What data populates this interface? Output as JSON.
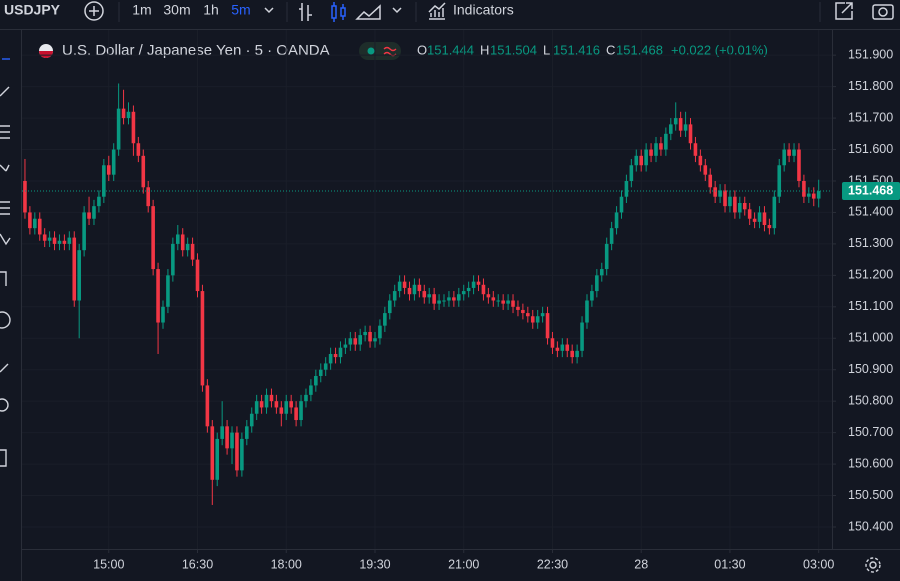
{
  "toolbar": {
    "symbol": "USDJPY",
    "intervals": [
      "1m",
      "30m",
      "1h",
      "5m"
    ],
    "active_interval": 3,
    "indicators": "Indicators"
  },
  "chart_data": {
    "type": "candlestick",
    "title": "U.S. Dollar / Japanese Yen · 5 · OANDA",
    "legend": {
      "labels": [
        "O",
        "H",
        "L",
        "C"
      ],
      "values": [
        151.444,
        151.504,
        151.416,
        151.468
      ],
      "change": "+0.022 (+0.01%)"
    },
    "up_color": "#089981",
    "down_color": "#f23645",
    "grid": true,
    "last_price": 151.468,
    "xlim": [
      -0.6,
      163.7
    ],
    "xticks": [
      {
        "value": 17,
        "label": "15:00"
      },
      {
        "value": 35,
        "label": "16:30"
      },
      {
        "value": 53,
        "label": "18:00"
      },
      {
        "value": 71,
        "label": "19:30"
      },
      {
        "value": 89,
        "label": "21:00"
      },
      {
        "value": 107,
        "label": "22:30"
      },
      {
        "value": 125,
        "label": "28"
      },
      {
        "value": 143,
        "label": "01:30"
      },
      {
        "value": 161,
        "label": "03:00"
      }
    ],
    "ylim": [
      150.33,
      151.98
    ],
    "yticks": [
      {
        "value": 151.9,
        "label": "151.900"
      },
      {
        "value": 151.8,
        "label": "151.800"
      },
      {
        "value": 151.7,
        "label": "151.700"
      },
      {
        "value": 151.6,
        "label": "151.600"
      },
      {
        "value": 151.5,
        "label": "151.500"
      },
      {
        "value": 151.4,
        "label": "151.400"
      },
      {
        "value": 151.3,
        "label": "151.300"
      },
      {
        "value": 151.2,
        "label": "151.200"
      },
      {
        "value": 151.1,
        "label": "151.100"
      },
      {
        "value": 151.0,
        "label": "151.000"
      },
      {
        "value": 150.9,
        "label": "150.900"
      },
      {
        "value": 150.8,
        "label": "150.800"
      },
      {
        "value": 150.7,
        "label": "150.700"
      },
      {
        "value": 150.6,
        "label": "150.600"
      },
      {
        "value": 150.5,
        "label": "150.500"
      },
      {
        "value": 150.4,
        "label": "150.400"
      }
    ],
    "open": [
      151.5,
      151.4,
      151.35,
      151.38,
      151.33,
      151.31,
      151.32,
      151.3,
      151.31,
      151.3,
      151.32,
      151.12,
      151.28,
      151.4,
      151.38,
      151.42,
      151.45,
      151.55,
      151.52,
      151.6,
      151.73,
      151.7,
      151.72,
      151.62,
      151.58,
      151.48,
      151.42,
      151.22,
      151.05,
      151.1,
      151.2,
      151.3,
      151.33,
      151.28,
      151.3,
      151.25,
      151.15,
      150.85,
      150.72,
      150.55,
      150.68,
      150.72,
      150.65,
      150.7,
      150.58,
      150.68,
      150.72,
      150.76,
      150.8,
      150.78,
      150.82,
      150.8,
      150.78,
      150.76,
      150.8,
      150.78,
      150.74,
      150.8,
      150.82,
      150.85,
      150.88,
      150.9,
      150.92,
      150.95,
      150.94,
      150.97,
      150.98,
      151.0,
      150.98,
      151.01,
      151.02,
      150.99,
      151.0,
      151.04,
      151.08,
      151.12,
      151.15,
      151.18,
      151.16,
      151.14,
      151.17,
      151.15,
      151.13,
      151.14,
      151.11,
      151.12,
      151.12,
      151.13,
      151.12,
      151.14,
      151.15,
      151.16,
      151.18,
      151.17,
      151.14,
      151.13,
      151.12,
      151.12,
      151.11,
      151.12,
      151.1,
      151.09,
      151.08,
      151.07,
      151.05,
      151.07,
      151.08,
      151.0,
      150.97,
      150.96,
      150.98,
      150.96,
      150.94,
      150.96,
      151.05,
      151.12,
      151.15,
      151.2,
      151.22,
      151.3,
      151.35,
      151.4,
      151.45,
      151.5,
      151.55,
      151.58,
      151.55,
      151.6,
      151.58,
      151.62,
      151.6,
      151.65,
      151.68,
      151.7,
      151.66,
      151.68,
      151.62,
      151.58,
      151.55,
      151.52,
      151.48,
      151.45,
      151.47,
      151.42,
      151.45,
      151.4,
      151.43,
      151.41,
      151.38,
      151.37,
      151.4,
      151.36,
      151.35,
      151.45,
      151.55,
      151.6,
      151.58,
      151.6,
      151.5,
      151.45,
      151.46,
      151.444
    ],
    "high": [
      151.57,
      151.42,
      151.4,
      151.4,
      151.35,
      151.34,
      151.34,
      151.33,
      151.33,
      151.34,
      151.34,
      151.3,
      151.42,
      151.45,
      151.44,
      151.47,
      151.57,
      151.58,
      151.62,
      151.81,
      151.79,
      151.75,
      151.74,
      151.64,
      151.6,
      151.5,
      151.44,
      151.24,
      151.12,
      151.22,
      151.32,
      151.36,
      151.35,
      151.32,
      151.32,
      151.27,
      151.17,
      150.87,
      150.74,
      150.7,
      150.8,
      150.74,
      150.72,
      150.72,
      150.7,
      150.74,
      150.78,
      150.82,
      150.82,
      150.84,
      150.84,
      150.82,
      150.8,
      150.82,
      150.82,
      150.8,
      150.82,
      150.84,
      150.87,
      150.9,
      150.92,
      150.94,
      150.97,
      150.97,
      150.99,
      151.0,
      151.02,
      151.02,
      151.03,
      151.04,
      151.04,
      151.02,
      151.06,
      151.1,
      151.14,
      151.17,
      151.2,
      151.2,
      151.18,
      151.19,
      151.19,
      151.17,
      151.16,
      151.16,
      151.14,
      151.14,
      151.15,
      151.15,
      151.16,
      151.17,
      151.18,
      151.2,
      151.2,
      151.19,
      151.16,
      151.15,
      151.14,
      151.14,
      151.14,
      151.14,
      151.12,
      151.11,
      151.1,
      151.09,
      151.09,
      151.1,
      151.1,
      151.02,
      150.99,
      151.0,
      151.0,
      150.98,
      150.98,
      151.07,
      151.14,
      151.17,
      151.22,
      151.24,
      151.32,
      151.37,
      151.42,
      151.47,
      151.52,
      151.57,
      151.6,
      151.6,
      151.62,
      151.62,
      151.64,
      151.64,
      151.67,
      151.7,
      151.75,
      151.72,
      151.72,
      151.7,
      151.64,
      151.6,
      151.57,
      151.54,
      151.5,
      151.49,
      151.49,
      151.47,
      151.47,
      151.45,
      151.45,
      151.43,
      151.4,
      151.42,
      151.42,
      151.38,
      151.47,
      151.57,
      151.62,
      151.62,
      151.62,
      151.62,
      151.52,
      151.48,
      151.48,
      151.504
    ],
    "low": [
      151.38,
      151.33,
      151.33,
      151.31,
      151.29,
      151.29,
      151.28,
      151.28,
      151.28,
      151.28,
      151.1,
      151.0,
      151.26,
      151.36,
      151.36,
      151.4,
      151.43,
      151.5,
      151.5,
      151.58,
      151.68,
      151.68,
      151.58,
      151.56,
      151.46,
      151.4,
      151.2,
      150.95,
      151.03,
      151.08,
      151.18,
      151.28,
      151.26,
      151.26,
      151.23,
      151.13,
      150.83,
      150.7,
      150.47,
      150.53,
      150.66,
      150.63,
      150.6,
      150.56,
      150.56,
      150.66,
      150.7,
      150.74,
      150.76,
      150.76,
      150.78,
      150.76,
      150.72,
      150.74,
      150.76,
      150.72,
      150.72,
      150.78,
      150.8,
      150.83,
      150.86,
      150.88,
      150.9,
      150.92,
      150.92,
      150.95,
      150.96,
      150.96,
      150.96,
      150.99,
      150.97,
      150.97,
      150.98,
      151.02,
      151.06,
      151.1,
      151.13,
      151.14,
      151.12,
      151.12,
      151.13,
      151.11,
      151.11,
      151.09,
      151.09,
      151.1,
      151.1,
      151.1,
      151.1,
      151.12,
      151.13,
      151.14,
      151.15,
      151.12,
      151.11,
      151.1,
      151.1,
      151.09,
      151.09,
      151.08,
      151.07,
      151.06,
      151.05,
      151.03,
      151.03,
      151.05,
      150.98,
      150.95,
      150.94,
      150.94,
      150.94,
      150.92,
      150.92,
      150.94,
      151.03,
      151.1,
      151.13,
      151.18,
      151.2,
      151.28,
      151.33,
      151.38,
      151.43,
      151.48,
      151.53,
      151.53,
      151.53,
      151.56,
      151.56,
      151.58,
      151.58,
      151.63,
      151.66,
      151.64,
      151.64,
      151.6,
      151.56,
      151.53,
      151.5,
      151.46,
      151.43,
      151.43,
      151.4,
      151.4,
      151.38,
      151.38,
      151.39,
      151.36,
      151.35,
      151.35,
      151.34,
      151.33,
      151.33,
      151.43,
      151.53,
      151.56,
      151.56,
      151.48,
      151.43,
      151.43,
      151.42,
      151.416
    ],
    "close": [
      151.4,
      151.35,
      151.38,
      151.33,
      151.31,
      151.32,
      151.3,
      151.31,
      151.3,
      151.32,
      151.12,
      151.28,
      151.4,
      151.38,
      151.42,
      151.45,
      151.55,
      151.52,
      151.6,
      151.73,
      151.7,
      151.72,
      151.62,
      151.58,
      151.48,
      151.42,
      151.22,
      151.05,
      151.1,
      151.2,
      151.3,
      151.33,
      151.28,
      151.3,
      151.25,
      151.15,
      150.85,
      150.72,
      150.55,
      150.68,
      150.72,
      150.65,
      150.7,
      150.58,
      150.68,
      150.72,
      150.76,
      150.8,
      150.78,
      150.82,
      150.8,
      150.78,
      150.76,
      150.8,
      150.78,
      150.74,
      150.8,
      150.82,
      150.85,
      150.88,
      150.9,
      150.92,
      150.95,
      150.94,
      150.97,
      150.98,
      151.0,
      150.98,
      151.01,
      151.02,
      150.99,
      151.0,
      151.04,
      151.08,
      151.12,
      151.15,
      151.18,
      151.16,
      151.14,
      151.17,
      151.15,
      151.13,
      151.14,
      151.11,
      151.12,
      151.12,
      151.13,
      151.12,
      151.14,
      151.15,
      151.16,
      151.18,
      151.17,
      151.14,
      151.13,
      151.12,
      151.12,
      151.11,
      151.12,
      151.1,
      151.09,
      151.08,
      151.07,
      151.05,
      151.07,
      151.08,
      151.0,
      150.97,
      150.96,
      150.98,
      150.96,
      150.94,
      150.96,
      151.05,
      151.12,
      151.15,
      151.2,
      151.22,
      151.3,
      151.35,
      151.4,
      151.45,
      151.5,
      151.55,
      151.58,
      151.55,
      151.6,
      151.58,
      151.62,
      151.6,
      151.65,
      151.68,
      151.7,
      151.66,
      151.68,
      151.62,
      151.58,
      151.55,
      151.52,
      151.48,
      151.45,
      151.47,
      151.42,
      151.45,
      151.4,
      151.43,
      151.41,
      151.38,
      151.37,
      151.4,
      151.36,
      151.35,
      151.45,
      151.55,
      151.6,
      151.58,
      151.6,
      151.5,
      151.45,
      151.46,
      151.444,
      151.468
    ]
  }
}
